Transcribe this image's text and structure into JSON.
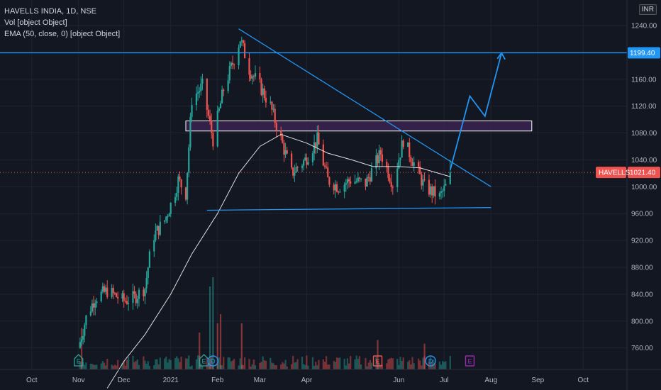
{
  "legend": {
    "title": "HAVELLS INDIA, 1D, NSE",
    "vol": "Vol [object Object]",
    "ema": "EMA (50, close, 0) [object Object]"
  },
  "currency": "INR",
  "colors": {
    "background": "#131722",
    "up": "#26a69a",
    "down": "#ef5350",
    "line": "#2196f3",
    "ema": "#ffffff",
    "zone": "#3b2350",
    "price_tag": "#ef5350",
    "level_tag": "#2196f3"
  },
  "chart_data": {
    "type": "candlestick",
    "symbol": "HAVELLS",
    "last_price": "1021.40",
    "level_label": "1199.40",
    "y_ticks": [
      760,
      800,
      840,
      880,
      920,
      960,
      1000,
      1040,
      1080,
      1120,
      1160,
      1200,
      1240
    ],
    "ylim": [
      728,
      1278
    ],
    "x_ticks": [
      "Oct",
      "Nov",
      "Dec",
      "2021",
      "Feb",
      "Mar",
      "Apr",
      "Jun",
      "Jul",
      "Aug",
      "Sep",
      "Oct"
    ],
    "x_tick_dates": [
      "2020-10-01",
      "2020-11-01",
      "2020-12-01",
      "2021-01-01",
      "2021-02-01",
      "2021-03-01",
      "2021-04-01",
      "2021-06-01",
      "2021-07-01",
      "2021-08-01",
      "2021-09-01",
      "2021-10-01"
    ],
    "xlim": [
      "2020-09-10",
      "2021-10-30"
    ],
    "keypoints": [
      [
        "2020-11-01",
        760
      ],
      [
        "2020-11-06",
        805
      ],
      [
        "2020-11-12",
        835
      ],
      [
        "2020-11-20",
        845
      ],
      [
        "2020-12-01",
        830
      ],
      [
        "2020-12-08",
        835
      ],
      [
        "2020-12-15",
        850
      ],
      [
        "2020-12-20",
        925
      ],
      [
        "2020-12-28",
        950
      ],
      [
        "2021-01-03",
        985
      ],
      [
        "2021-01-06",
        1010
      ],
      [
        "2021-01-11",
        990
      ],
      [
        "2021-01-15",
        1130
      ],
      [
        "2021-01-22",
        1150
      ],
      [
        "2021-01-29",
        1070
      ],
      [
        "2021-02-05",
        1145
      ],
      [
        "2021-02-12",
        1190
      ],
      [
        "2021-02-16",
        1220
      ],
      [
        "2021-02-22",
        1175
      ],
      [
        "2021-03-01",
        1150
      ],
      [
        "2021-03-08",
        1120
      ],
      [
        "2021-03-15",
        1070
      ],
      [
        "2021-03-22",
        1020
      ],
      [
        "2021-03-31",
        1040
      ],
      [
        "2021-04-08",
        1070
      ],
      [
        "2021-04-15",
        1010
      ],
      [
        "2021-04-22",
        1000
      ],
      [
        "2021-04-30",
        1010
      ],
      [
        "2021-05-10",
        1005
      ],
      [
        "2021-05-20",
        1050
      ],
      [
        "2021-05-28",
        1005
      ],
      [
        "2021-06-04",
        1070
      ],
      [
        "2021-06-10",
        1040
      ],
      [
        "2021-06-18",
        1000
      ],
      [
        "2021-06-28",
        985
      ],
      [
        "2021-07-02",
        1000
      ],
      [
        "2021-07-05",
        1021.4
      ]
    ],
    "ema50": [
      [
        "2020-11-20",
        700
      ],
      [
        "2020-12-01",
        740
      ],
      [
        "2020-12-15",
        780
      ],
      [
        "2021-01-01",
        840
      ],
      [
        "2021-01-15",
        900
      ],
      [
        "2021-02-01",
        960
      ],
      [
        "2021-02-15",
        1020
      ],
      [
        "2021-03-01",
        1060
      ],
      [
        "2021-03-15",
        1078
      ],
      [
        "2021-04-01",
        1065
      ],
      [
        "2021-04-15",
        1050
      ],
      [
        "2021-05-01",
        1040
      ],
      [
        "2021-05-15",
        1030
      ],
      [
        "2021-06-01",
        1030
      ],
      [
        "2021-06-15",
        1028
      ],
      [
        "2021-07-05",
        1015
      ]
    ],
    "volume_spikes": [
      [
        "2020-11-03",
        0.45
      ],
      [
        "2021-01-20",
        0.4
      ],
      [
        "2021-01-27",
        0.9
      ],
      [
        "2021-01-29",
        1.0
      ],
      [
        "2021-02-01",
        0.5
      ],
      [
        "2021-02-03",
        0.6
      ],
      [
        "2021-02-17",
        0.5
      ],
      [
        "2021-05-18",
        0.32
      ],
      [
        "2021-06-18",
        0.28
      ]
    ],
    "event_markers": [
      {
        "label": "E",
        "date": "2020-11-01",
        "shape": "house",
        "color": "#26a69a"
      },
      {
        "label": "E",
        "date": "2021-01-23",
        "shape": "house",
        "color": "#26a69a"
      },
      {
        "label": "D",
        "date": "2021-01-29",
        "shape": "circle",
        "color": "#2196f3"
      },
      {
        "label": "E",
        "date": "2021-05-18",
        "shape": "square",
        "color": "#ef5350"
      },
      {
        "label": "D",
        "date": "2021-06-22",
        "shape": "circle",
        "color": "#2196f3"
      },
      {
        "label": "E",
        "date": "2021-07-18",
        "shape": "square",
        "color": "#9c27b0"
      }
    ],
    "drawings": {
      "hline_level": 1199.4,
      "trendline_down": [
        [
          "2021-02-15",
          1235
        ],
        [
          "2021-08-01",
          1000
        ]
      ],
      "trendline_support": [
        [
          "2021-01-25",
          965
        ],
        [
          "2021-08-01",
          969
        ]
      ],
      "zone": {
        "from": "2021-01-11",
        "to": "2021-08-28",
        "top": 1098,
        "bottom": 1083
      },
      "projection": [
        [
          "2021-07-05",
          1025
        ],
        [
          "2021-07-18",
          1135
        ],
        [
          "2021-07-28",
          1105
        ],
        [
          "2021-08-08",
          1199
        ]
      ]
    }
  }
}
